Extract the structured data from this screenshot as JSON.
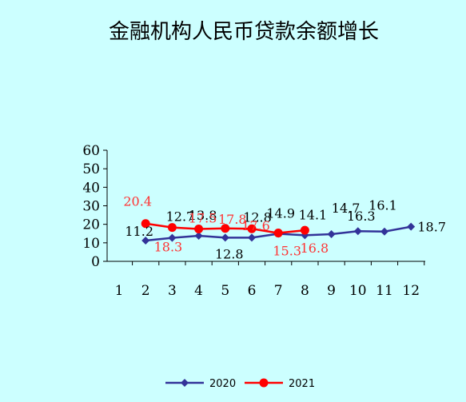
{
  "chart_data": {
    "type": "line",
    "title": "金融机构人民币贷款余额增长",
    "xlabel": "",
    "ylabel": "",
    "categories": [
      "1",
      "2",
      "3",
      "4",
      "5",
      "6",
      "7",
      "8",
      "9",
      "10",
      "11",
      "12"
    ],
    "ylim": [
      0,
      60
    ],
    "yticks": [
      "0",
      "10",
      "20",
      "30",
      "40",
      "50",
      "60"
    ],
    "grid": false,
    "legend_position": "bottom",
    "series": [
      {
        "name": "2020",
        "color": "#333399",
        "marker": "diamond",
        "values": [
          null,
          11.2,
          12.7,
          13.8,
          12.8,
          12.8,
          14.9,
          14.1,
          14.7,
          16.3,
          16.1,
          18.7
        ],
        "labels": [
          "",
          "11.2",
          "12.7",
          "13.8",
          "12.8",
          "12.8",
          "14.9",
          "14.1",
          "14.7",
          "16.3",
          "16.1",
          "18.7"
        ]
      },
      {
        "name": "2021",
        "color": "#ff0000",
        "marker": "circle",
        "values": [
          null,
          20.4,
          18.3,
          17.5,
          17.8,
          17.6,
          15.3,
          16.8,
          null,
          null,
          null,
          null
        ],
        "labels": [
          "",
          "20.4",
          "18.3",
          "17.5",
          "17.8",
          "17.6",
          "15.3",
          "16.8",
          "",
          "",
          "",
          ""
        ]
      }
    ]
  }
}
